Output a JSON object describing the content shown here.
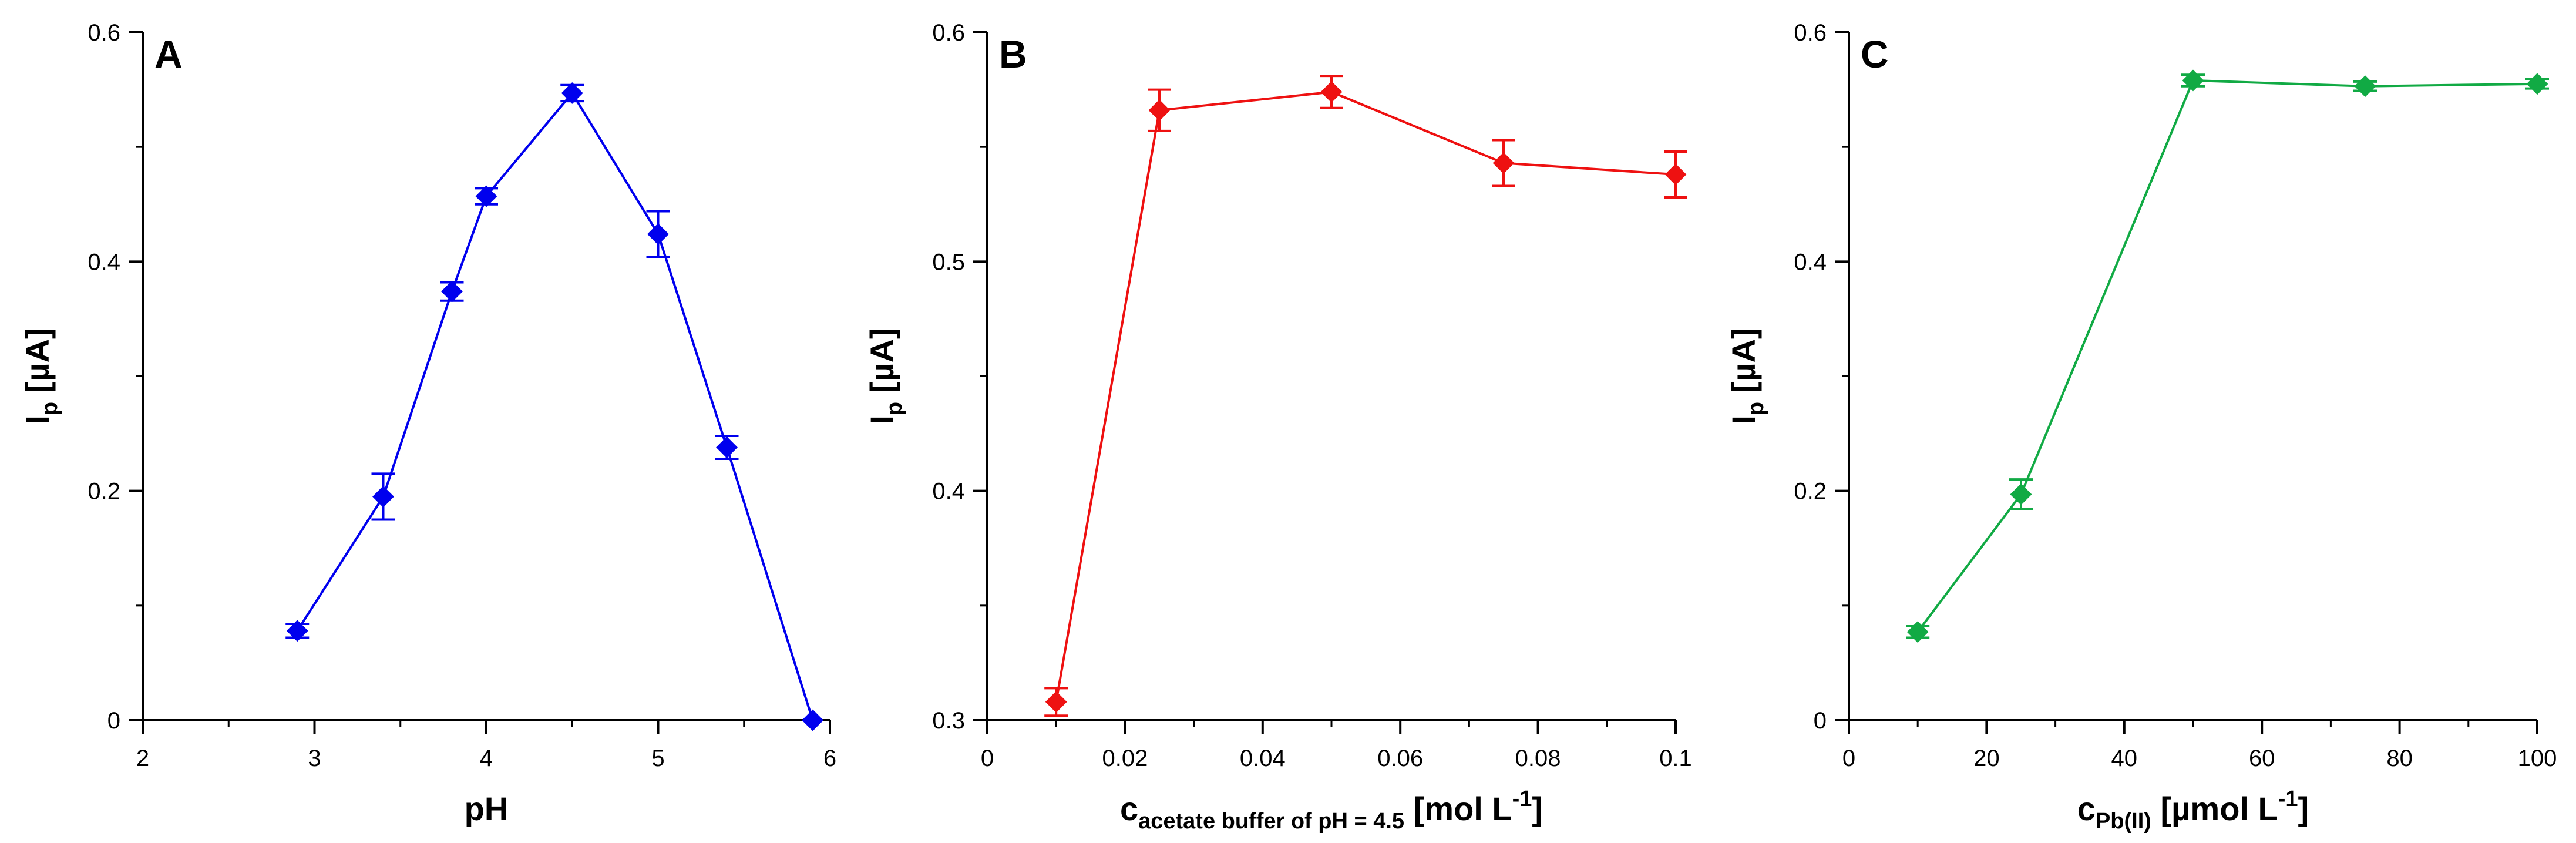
{
  "chart_data": [
    {
      "type": "line",
      "panel": "A",
      "color": "#0000ee",
      "xlabel": "pH",
      "ylabel": "I",
      "ylabel_sub": "p",
      "ylabel_unit": "[µA]",
      "xlim": [
        2,
        6
      ],
      "ylim": [
        0,
        0.6
      ],
      "x_ticks": [
        2,
        3,
        4,
        5,
        6
      ],
      "x_tick_labels": [
        "2",
        "3",
        "4",
        "5",
        "6"
      ],
      "x_minor_step": 0.5,
      "y_ticks": [
        0,
        0.2,
        0.4,
        0.6
      ],
      "y_tick_labels": [
        "0",
        "0.2",
        "0.4",
        "0.6"
      ],
      "y_minor_step": 0.1,
      "series": [
        {
          "name": "Ip",
          "x": [
            2.9,
            3.4,
            3.8,
            4.0,
            4.5,
            5.0,
            5.4,
            5.9
          ],
          "y": [
            0.078,
            0.195,
            0.374,
            0.457,
            0.547,
            0.424,
            0.238,
            0.0
          ],
          "err": [
            0.006,
            0.02,
            0.008,
            0.007,
            0.007,
            0.02,
            0.01,
            0.0
          ]
        }
      ]
    },
    {
      "type": "line",
      "panel": "B",
      "color": "#ee1111",
      "xlabel": "c",
      "xlabel_sub": "acetate buffer of pH = 4.5",
      "xlabel_unit": "[mol L",
      "xlabel_sup": "-1",
      "xlabel_end": "]",
      "ylabel": "I",
      "ylabel_sub": "p",
      "ylabel_unit": "[µA]",
      "xlim": [
        0,
        0.1
      ],
      "ylim": [
        0.3,
        0.6
      ],
      "x_ticks": [
        0,
        0.02,
        0.04,
        0.06,
        0.08,
        0.1
      ],
      "x_tick_labels": [
        "0",
        "0.02",
        "0.04",
        "0.06",
        "0.08",
        "0.1"
      ],
      "x_minor_step": 0.01,
      "y_ticks": [
        0.3,
        0.4,
        0.5,
        0.6
      ],
      "y_tick_labels": [
        "0.3",
        "0.4",
        "0.5",
        "0.6"
      ],
      "y_minor_step": 0.05,
      "series": [
        {
          "name": "Ip",
          "x": [
            0.01,
            0.025,
            0.05,
            0.075,
            0.1
          ],
          "y": [
            0.308,
            0.566,
            0.574,
            0.543,
            0.538
          ],
          "err": [
            0.006,
            0.009,
            0.007,
            0.01,
            0.01
          ]
        }
      ]
    },
    {
      "type": "line",
      "panel": "C",
      "color": "#11aa44",
      "xlabel": "c",
      "xlabel_sub": "Pb(II)",
      "xlabel_unit": "[µmol L",
      "xlabel_sup": "-1",
      "xlabel_end": "]",
      "ylabel": "I",
      "ylabel_sub": "p",
      "ylabel_unit": "[µA]",
      "xlim": [
        0,
        100
      ],
      "ylim": [
        0,
        0.6
      ],
      "x_ticks": [
        0,
        20,
        40,
        60,
        80,
        100
      ],
      "x_tick_labels": [
        "0",
        "20",
        "40",
        "60",
        "80",
        "100"
      ],
      "x_minor_step": 10,
      "y_ticks": [
        0,
        0.2,
        0.4,
        0.6
      ],
      "y_tick_labels": [
        "0",
        "0.2",
        "0.4",
        "0.6"
      ],
      "y_minor_step": 0.1,
      "series": [
        {
          "name": "Ip",
          "x": [
            10,
            25,
            50,
            75,
            100
          ],
          "y": [
            0.077,
            0.197,
            0.558,
            0.553,
            0.555
          ],
          "err": [
            0.005,
            0.013,
            0.005,
            0.004,
            0.004
          ]
        }
      ]
    }
  ]
}
